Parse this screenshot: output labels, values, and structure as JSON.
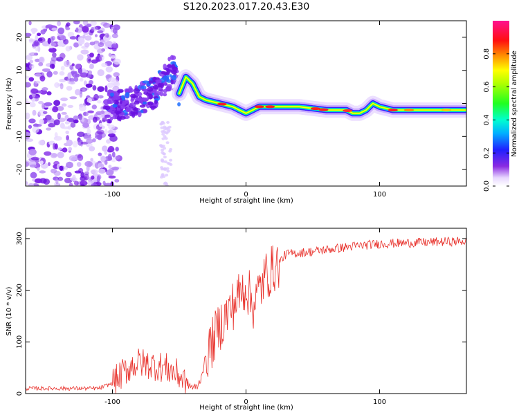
{
  "title": "S120.2023.017.20.43.E30",
  "chart_data": [
    {
      "type": "heatmap",
      "xlabel": "Height of straight line (km)",
      "ylabel": "Frequency (Hz)",
      "xlim": [
        -165,
        165
      ],
      "ylim": [
        -25,
        25
      ],
      "xticks": [
        -100,
        0,
        100
      ],
      "yticks": [
        -20,
        -10,
        0,
        10,
        20
      ],
      "colorbar": {
        "label": "Normalized spectral amplitude",
        "ticks": [
          "0.0",
          "0.2",
          "0.4",
          "0.6",
          "0.8"
        ],
        "range": [
          0,
          1
        ],
        "colormap": "rainbow (white-violet-blue-cyan-green-yellow-orange-red-pink)"
      },
      "ridge": {
        "x": [
          -100,
          -90,
          -80,
          -70,
          -60,
          -55,
          -50,
          -45,
          -40,
          -35,
          -30,
          -20,
          -10,
          -5,
          0,
          10,
          20,
          40,
          60,
          70,
          75,
          80,
          85,
          90,
          95,
          100,
          110,
          120,
          140,
          165
        ],
        "freq": [
          -1,
          0,
          1,
          3,
          7,
          11,
          3,
          8,
          6,
          2,
          1,
          0,
          -1,
          -2,
          -3,
          -1,
          -1,
          -1,
          -2,
          -2,
          -2,
          -3,
          -3,
          -2,
          0,
          -1,
          -2,
          -2,
          -2,
          -2
        ]
      }
    },
    {
      "type": "line",
      "xlabel": "Height of straight line (km)",
      "ylabel": "SNR (10 * v/v)",
      "xlim": [
        -165,
        165
      ],
      "ylim": [
        0,
        320
      ],
      "xticks": [
        -100,
        0,
        100
      ],
      "yticks": [
        0,
        100,
        200,
        300
      ],
      "color": "#e8302a",
      "profile": {
        "x": [
          -165,
          -110,
          -100,
          -90,
          -85,
          -80,
          -70,
          -60,
          -50,
          -42,
          -38,
          -35,
          -30,
          -20,
          -10,
          0,
          5,
          15,
          20,
          30,
          50,
          80,
          100,
          165
        ],
        "snr": [
          10,
          10,
          20,
          45,
          55,
          60,
          55,
          50,
          35,
          15,
          10,
          20,
          70,
          130,
          170,
          210,
          170,
          230,
          240,
          270,
          275,
          285,
          290,
          295
        ]
      }
    }
  ]
}
